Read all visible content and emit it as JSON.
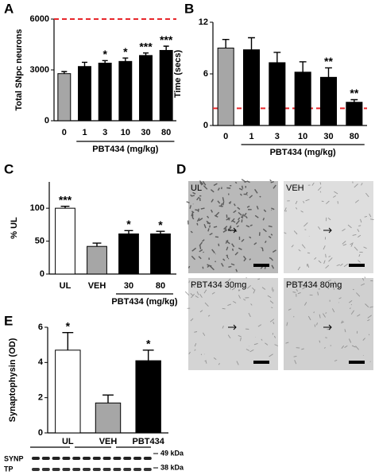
{
  "chart_data": [
    {
      "type": "bar",
      "panel": "A",
      "y_label": "Total SNpc neurons",
      "x_label": "PBT434 (mg/kg)",
      "categories": [
        "0",
        "1",
        "3",
        "10",
        "30",
        "80"
      ],
      "values": [
        2780,
        3200,
        3400,
        3500,
        3850,
        4150
      ],
      "errors": [
        120,
        250,
        150,
        200,
        150,
        250
      ],
      "colors": [
        "#a6a6a6",
        "#000000",
        "#000000",
        "#000000",
        "#000000",
        "#000000"
      ],
      "annotations": [
        null,
        null,
        "*",
        "*",
        "***",
        "***"
      ],
      "ylim": [
        0,
        6000
      ],
      "yticks": [
        0,
        3000,
        6000
      ],
      "reference_line": 6000,
      "reference_color": "#e8262b"
    },
    {
      "type": "bar",
      "panel": "B",
      "y_label": "Time (secs)",
      "x_label": "PBT434 (mg/kg)",
      "categories": [
        "0",
        "1",
        "3",
        "10",
        "30",
        "80"
      ],
      "values": [
        9.0,
        8.8,
        7.3,
        6.2,
        5.6,
        2.7
      ],
      "errors": [
        1.0,
        1.4,
        1.2,
        1.2,
        1.1,
        0.3
      ],
      "colors": [
        "#a6a6a6",
        "#000000",
        "#000000",
        "#000000",
        "#000000",
        "#000000"
      ],
      "annotations": [
        null,
        null,
        null,
        null,
        "**",
        "**"
      ],
      "ylim": [
        0,
        12
      ],
      "yticks": [
        0,
        6,
        12
      ],
      "reference_line": 2.0,
      "reference_color": "#e8262b"
    },
    {
      "type": "bar",
      "panel": "C",
      "y_label": "% UL",
      "x_label": "PBT434 (mg/kg)",
      "categories": [
        "UL",
        "VEH",
        "30",
        "80"
      ],
      "values": [
        100,
        42,
        61,
        61
      ],
      "errors": [
        3,
        5,
        5,
        4
      ],
      "colors": [
        "#ffffff",
        "#a6a6a6",
        "#000000",
        "#000000"
      ],
      "annotations": [
        "***",
        null,
        "*",
        "*"
      ],
      "ylim": [
        0,
        140
      ],
      "yticks": [
        0,
        50,
        100
      ]
    },
    {
      "type": "bar",
      "panel": "E",
      "y_label": "Synaptophysin (OD)",
      "categories": [
        "UL",
        "VEH",
        "PBT434"
      ],
      "values": [
        4.7,
        1.7,
        4.1
      ],
      "errors": [
        1.0,
        0.45,
        0.6
      ],
      "colors": [
        "#ffffff",
        "#a6a6a6",
        "#000000"
      ],
      "annotations": [
        "*",
        null,
        "*"
      ],
      "ylim": [
        0,
        6
      ],
      "yticks": [
        0,
        2,
        4,
        6
      ]
    }
  ],
  "micrographs": {
    "panel": "D",
    "labels": [
      "UL",
      "VEH",
      "PBT434 30mg",
      "PBT434 80mg"
    ]
  },
  "blot": {
    "rows": [
      "SYNP",
      "TP"
    ],
    "markers": [
      "49 kDa",
      "38 kDa"
    ]
  }
}
